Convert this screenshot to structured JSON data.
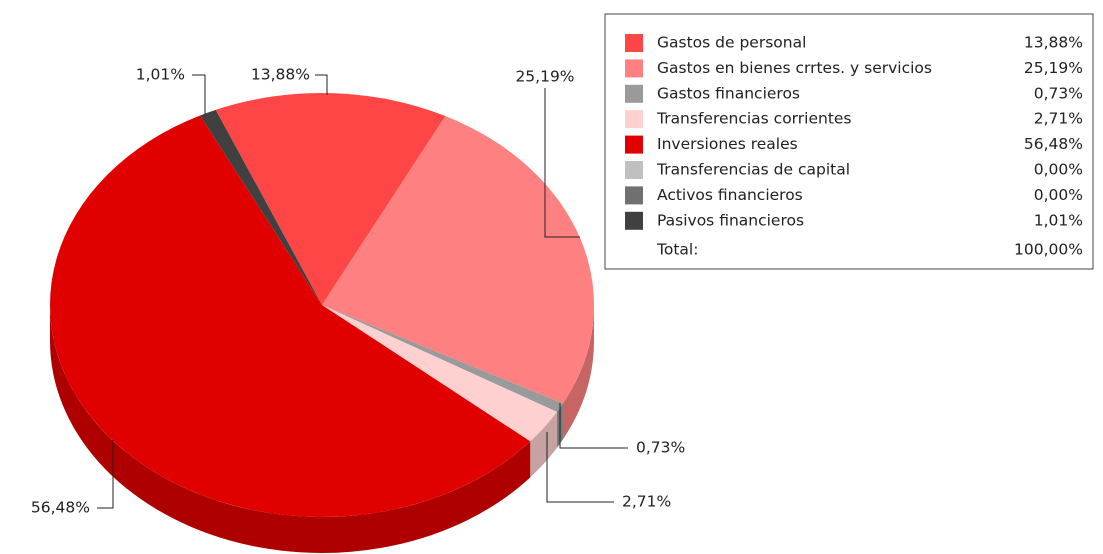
{
  "chart_data": {
    "type": "pie3d",
    "categories": [
      "Gastos de personal",
      "Gastos en bienes crrtes. y servicios",
      "Gastos financieros",
      "Transferencias corrientes",
      "Inversiones reales",
      "Transferencias de capital",
      "Activos financieros",
      "Pasivos financieros"
    ],
    "values": [
      13.88,
      25.19,
      0.73,
      2.71,
      56.48,
      0,
      0,
      1.01
    ],
    "value_labels": [
      "13,88%",
      "25,19%",
      "0,73%",
      "2,71%",
      "56,48%",
      "0,00%",
      "0,00%",
      "1,01%"
    ],
    "colors": [
      "#ff4646",
      "#ff8080",
      "#9a9a9a",
      "#ffd0d0",
      "#e00000",
      "#c0c0c0",
      "#707070",
      "#404040"
    ],
    "total": {
      "value": 100,
      "label": "100,00%",
      "name": "Total:"
    }
  }
}
